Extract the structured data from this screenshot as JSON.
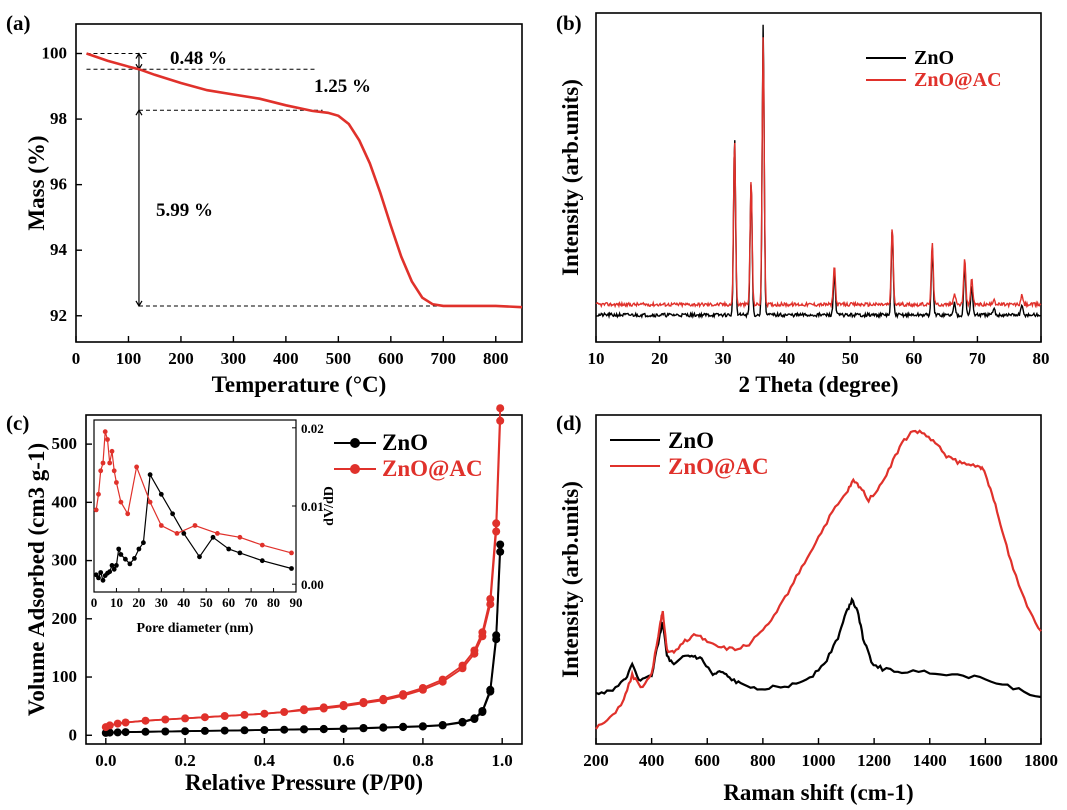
{
  "colors": {
    "zno": "#000000",
    "zno_ac": "#e0312b"
  },
  "panels": {
    "a": "(a)",
    "b": "(b)",
    "c": "(c)",
    "d": "(d)"
  },
  "chart_data": [
    {
      "id": "a",
      "type": "line",
      "xlabel": "Temperature (°C)",
      "ylabel": "Mass (%)",
      "xlim": [
        0,
        850
      ],
      "ylim": [
        91.2,
        100.9
      ],
      "xticks": [
        0,
        100,
        200,
        300,
        400,
        500,
        600,
        700,
        800
      ],
      "yticks": [
        92,
        94,
        96,
        98,
        100
      ],
      "series": [
        {
          "color": "#e0312b",
          "x": [
            20,
            60,
            100,
            120,
            150,
            200,
            250,
            300,
            350,
            400,
            450,
            480,
            500,
            520,
            540,
            560,
            580,
            600,
            620,
            640,
            660,
            680,
            700,
            750,
            800,
            850
          ],
          "y": [
            100,
            99.78,
            99.6,
            99.52,
            99.35,
            99.1,
            98.88,
            98.75,
            98.62,
            98.42,
            98.25,
            98.19,
            98.1,
            97.85,
            97.35,
            96.65,
            95.75,
            94.75,
            93.8,
            93.05,
            92.55,
            92.35,
            92.3,
            92.3,
            92.3,
            92.26
          ]
        }
      ],
      "annotations": [
        "0.48 %",
        "1.25 %",
        "5.99 %"
      ]
    },
    {
      "id": "b",
      "type": "line",
      "xlabel": "2 Theta (degree)",
      "ylabel": "Intensity (arb.units)",
      "xlim": [
        10,
        80
      ],
      "xticks": [
        10,
        20,
        30,
        40,
        50,
        60,
        70,
        80
      ],
      "legend": "top-right",
      "series": [
        {
          "name": "ZnO",
          "color": "#000000",
          "baseline": 0.03,
          "peaks": [
            [
              31.8,
              0.6
            ],
            [
              34.4,
              0.45
            ],
            [
              36.3,
              0.97
            ],
            [
              47.5,
              0.14
            ],
            [
              56.6,
              0.28
            ],
            [
              62.9,
              0.22
            ],
            [
              66.4,
              0.04
            ],
            [
              68.0,
              0.17
            ],
            [
              69.1,
              0.1
            ],
            [
              72.6,
              0.02
            ],
            [
              77.0,
              0.03
            ]
          ]
        },
        {
          "name": "ZnO@AC",
          "color": "#e0312b",
          "baseline": 0.065,
          "peaks": [
            [
              31.8,
              0.56
            ],
            [
              34.4,
              0.42
            ],
            [
              36.3,
              0.9
            ],
            [
              47.5,
              0.13
            ],
            [
              56.6,
              0.26
            ],
            [
              62.9,
              0.21
            ],
            [
              66.4,
              0.04
            ],
            [
              68.0,
              0.16
            ],
            [
              69.1,
              0.09
            ],
            [
              72.6,
              0.02
            ],
            [
              77.0,
              0.03
            ]
          ]
        }
      ]
    },
    {
      "id": "c",
      "type": "scatter",
      "xlabel": "Relative Pressure (P/P0)",
      "ylabel": "Volume Adsorbed (cm3 g-1)",
      "xlim": [
        -0.05,
        1.05
      ],
      "ylim": [
        -15,
        550
      ],
      "xticks": [
        0.0,
        0.2,
        0.4,
        0.6,
        0.8,
        1.0
      ],
      "yticks": [
        0,
        100,
        200,
        300,
        400,
        500
      ],
      "legend": "top-right",
      "series": [
        {
          "name": "ZnO",
          "color": "#000000",
          "x": [
            0.0,
            0.01,
            0.03,
            0.05,
            0.1,
            0.15,
            0.2,
            0.25,
            0.3,
            0.35,
            0.4,
            0.45,
            0.5,
            0.55,
            0.6,
            0.65,
            0.7,
            0.75,
            0.8,
            0.85,
            0.9,
            0.93,
            0.95,
            0.97,
            0.985,
            0.995
          ],
          "y": [
            4,
            4.5,
            5,
            5.5,
            6,
            6.5,
            7,
            7.5,
            8,
            8.5,
            9,
            9.5,
            10,
            10.5,
            11,
            12,
            13,
            14,
            15,
            17,
            22,
            28,
            40,
            75,
            165,
            315
          ]
        },
        {
          "name": "ZnO@AC",
          "color": "#e0312b",
          "x": [
            0.0,
            0.01,
            0.03,
            0.05,
            0.1,
            0.15,
            0.2,
            0.25,
            0.3,
            0.35,
            0.4,
            0.45,
            0.5,
            0.55,
            0.6,
            0.65,
            0.7,
            0.75,
            0.8,
            0.85,
            0.9,
            0.93,
            0.95,
            0.97,
            0.985,
            0.995
          ],
          "y": [
            14,
            17,
            20,
            22,
            25,
            27,
            29,
            31,
            33,
            35,
            37,
            40,
            43,
            46,
            50,
            55,
            60,
            68,
            78,
            92,
            115,
            140,
            170,
            225,
            350,
            540
          ]
        }
      ],
      "inset": {
        "xlabel": "Pore diameter (nm)",
        "ylabel": "dV/dD",
        "xlim": [
          0,
          90
        ],
        "ylim": [
          -0.001,
          0.021
        ],
        "xticks": [
          0,
          10,
          20,
          30,
          40,
          50,
          60,
          70,
          80,
          90
        ],
        "yticks": [
          0.0,
          0.01,
          0.02
        ],
        "series": [
          {
            "name": "ZnO",
            "color": "#000000",
            "x": [
              1,
              2,
              3,
              4,
              5,
              6,
              7,
              8,
              9,
              10,
              11,
              12,
              14,
              16,
              18,
              20,
              22,
              25,
              30,
              35,
              40,
              47,
              53,
              60,
              65,
              75,
              88
            ],
            "y": [
              0.0012,
              0.0008,
              0.0015,
              0.0005,
              0.0011,
              0.0014,
              0.0016,
              0.0024,
              0.0019,
              0.0024,
              0.0045,
              0.0038,
              0.0032,
              0.0026,
              0.0033,
              0.0045,
              0.0053,
              0.014,
              0.0115,
              0.009,
              0.0065,
              0.0035,
              0.006,
              0.0045,
              0.004,
              0.003,
              0.002
            ]
          },
          {
            "name": "ZnO@AC",
            "color": "#e0312b",
            "x": [
              1,
              2,
              3,
              4,
              5,
              6,
              7,
              8,
              9,
              10,
              12,
              15,
              19,
              25,
              30,
              37,
              45,
              55,
              65,
              75,
              88
            ],
            "y": [
              0.0095,
              0.0115,
              0.0145,
              0.0155,
              0.0195,
              0.0185,
              0.0155,
              0.017,
              0.0145,
              0.013,
              0.0105,
              0.009,
              0.015,
              0.0105,
              0.0075,
              0.0065,
              0.0075,
              0.0065,
              0.006,
              0.005,
              0.004
            ]
          }
        ]
      }
    },
    {
      "id": "d",
      "type": "line",
      "xlabel": "Raman shift (cm-1)",
      "ylabel": "Intensity (arb.units)",
      "xlim": [
        200,
        1800
      ],
      "xticks": [
        200,
        400,
        600,
        800,
        1000,
        1200,
        1400,
        1600,
        1800
      ],
      "legend": "top-left",
      "series": [
        {
          "name": "ZnO",
          "color": "#000000",
          "x": [
            200,
            250,
            300,
            330,
            360,
            400,
            430,
            440,
            455,
            480,
            520,
            550,
            580,
            620,
            650,
            680,
            720,
            780,
            850,
            920,
            980,
            1030,
            1070,
            1100,
            1120,
            1140,
            1160,
            1190,
            1230,
            1300,
            1400,
            1500,
            1600,
            1700,
            1800
          ],
          "y": [
            0.16,
            0.17,
            0.2,
            0.25,
            0.2,
            0.22,
            0.35,
            0.39,
            0.28,
            0.25,
            0.28,
            0.28,
            0.27,
            0.22,
            0.23,
            0.21,
            0.19,
            0.18,
            0.18,
            0.19,
            0.22,
            0.27,
            0.34,
            0.42,
            0.46,
            0.43,
            0.34,
            0.26,
            0.24,
            0.23,
            0.23,
            0.22,
            0.21,
            0.18,
            0.15
          ]
        },
        {
          "name": "ZnO@AC",
          "color": "#e0312b",
          "x": [
            200,
            250,
            300,
            330,
            360,
            400,
            430,
            440,
            455,
            480,
            520,
            560,
            600,
            650,
            700,
            750,
            800,
            850,
            900,
            950,
            1000,
            1050,
            1100,
            1125,
            1150,
            1180,
            1220,
            1260,
            1300,
            1340,
            1380,
            1420,
            1460,
            1500,
            1540,
            1580,
            1600,
            1630,
            1660,
            1700,
            1750,
            1800
          ],
          "y": [
            0.05,
            0.08,
            0.14,
            0.22,
            0.18,
            0.22,
            0.38,
            0.42,
            0.3,
            0.29,
            0.33,
            0.35,
            0.33,
            0.31,
            0.3,
            0.32,
            0.36,
            0.42,
            0.5,
            0.58,
            0.66,
            0.74,
            0.8,
            0.84,
            0.82,
            0.78,
            0.82,
            0.89,
            0.96,
            1.0,
            0.99,
            0.96,
            0.92,
            0.9,
            0.89,
            0.89,
            0.86,
            0.78,
            0.68,
            0.56,
            0.44,
            0.36
          ]
        }
      ]
    }
  ]
}
